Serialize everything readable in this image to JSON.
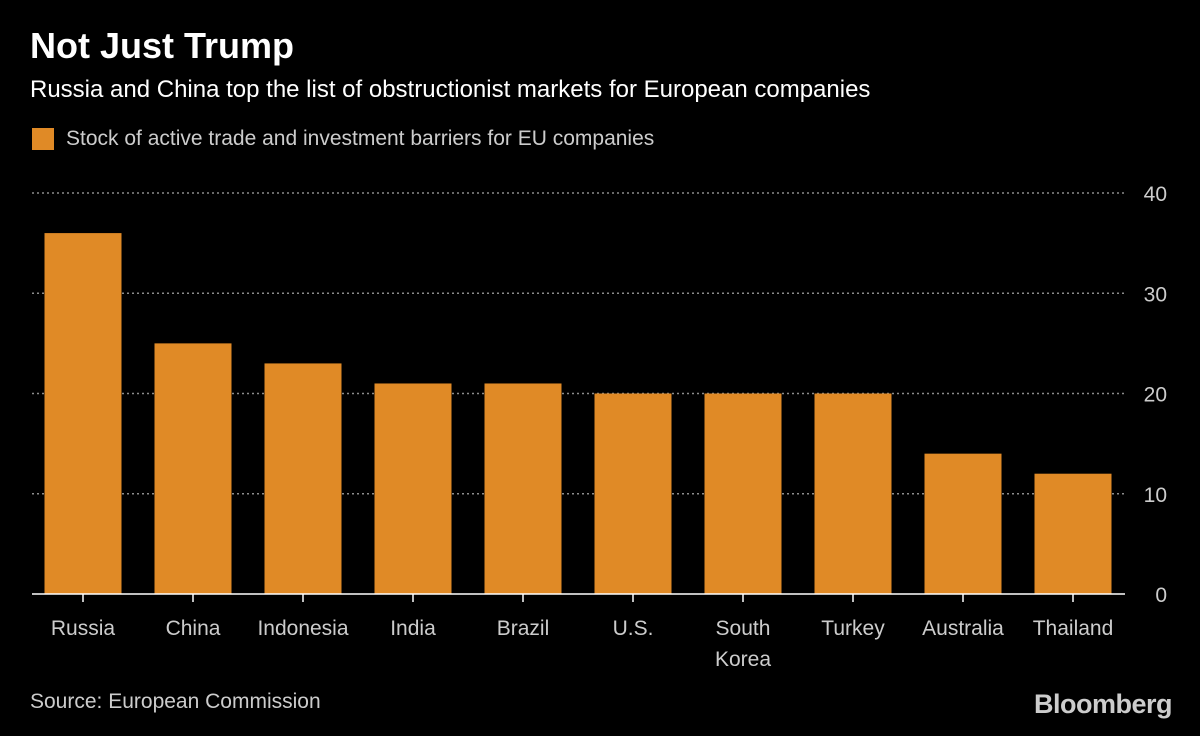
{
  "title": "Not Just Trump",
  "subtitle": "Russia and China top the list of obstructionist markets for European companies",
  "legend": {
    "label": "Stock of active trade and investment barriers for EU companies"
  },
  "source": "Source: European Commission",
  "brand": "Bloomberg",
  "colors": {
    "bar": "#e08a26",
    "background": "#000000",
    "grid": "#8c8c8c",
    "text": "#cccccc"
  },
  "chart_data": {
    "type": "bar",
    "title": "Not Just Trump",
    "subtitle": "Russia and China top the list of obstructionist markets for European companies",
    "categories": [
      [
        "Russia"
      ],
      [
        "China"
      ],
      [
        "Indonesia"
      ],
      [
        "India"
      ],
      [
        "Brazil"
      ],
      [
        "U.S."
      ],
      [
        "South",
        "Korea"
      ],
      [
        "Turkey"
      ],
      [
        "Australia"
      ],
      [
        "Thailand"
      ]
    ],
    "series": [
      {
        "name": "Stock of active trade and investment barriers for EU companies",
        "values": [
          36,
          25,
          23,
          21,
          21,
          20,
          20,
          20,
          14,
          12
        ]
      }
    ],
    "ylim": [
      0,
      40
    ],
    "yticks": [
      "0",
      "10",
      "20",
      "30",
      "40"
    ],
    "ytick_values": [
      0,
      10,
      20,
      30,
      40
    ],
    "xlabel": "",
    "ylabel": "",
    "grid": true,
    "legend_position": "top-left"
  }
}
